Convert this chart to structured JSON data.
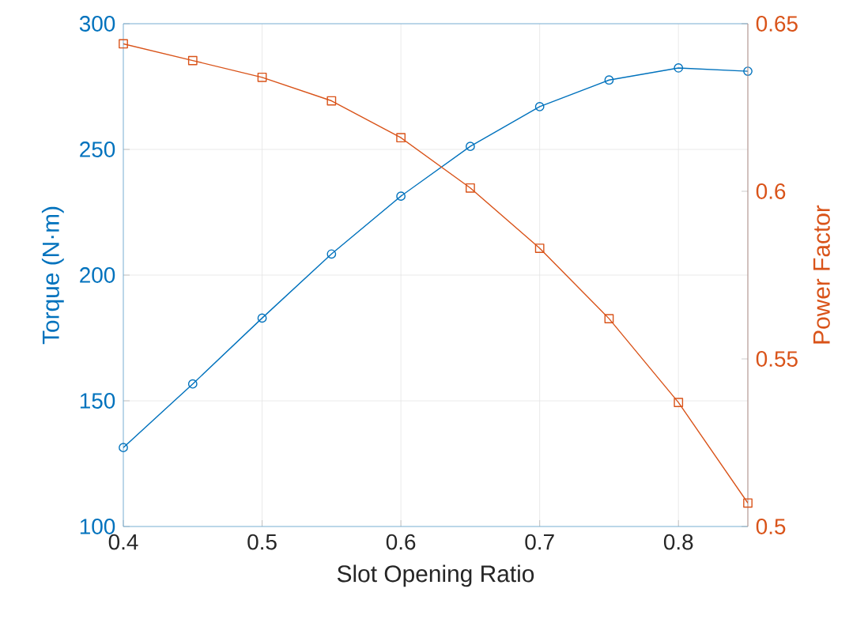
{
  "chart_data": {
    "type": "line",
    "xlabel": "Slot Opening Ratio",
    "ylabel": "Torque (N·m)",
    "y2label": "Power Factor",
    "x": [
      0.4,
      0.45,
      0.5,
      0.55,
      0.6,
      0.65,
      0.7,
      0.75,
      0.8,
      0.85
    ],
    "series": [
      {
        "color": "#0072bd",
        "marker": "circle",
        "values": [
          131.4,
          156.7,
          182.9,
          208.4,
          231.4,
          251.2,
          267.0,
          277.6,
          282.4,
          281.1
        ]
      },
      {
        "color": "#d95319",
        "marker": "square",
        "axis": "y2",
        "values": [
          0.644,
          0.639,
          0.634,
          0.627,
          0.616,
          0.601,
          0.583,
          0.562,
          0.537,
          0.507
        ]
      }
    ],
    "xlim": [
      0.4,
      0.85
    ],
    "xticks": [
      0.4,
      0.5,
      0.6,
      0.7,
      0.8
    ],
    "ylim": [
      100,
      300
    ],
    "yticks": [
      100,
      150,
      200,
      250,
      300
    ],
    "y2lim": [
      0.5,
      0.65
    ],
    "y2ticks": [
      0.5,
      0.55,
      0.6,
      0.65
    ],
    "grid": true
  }
}
